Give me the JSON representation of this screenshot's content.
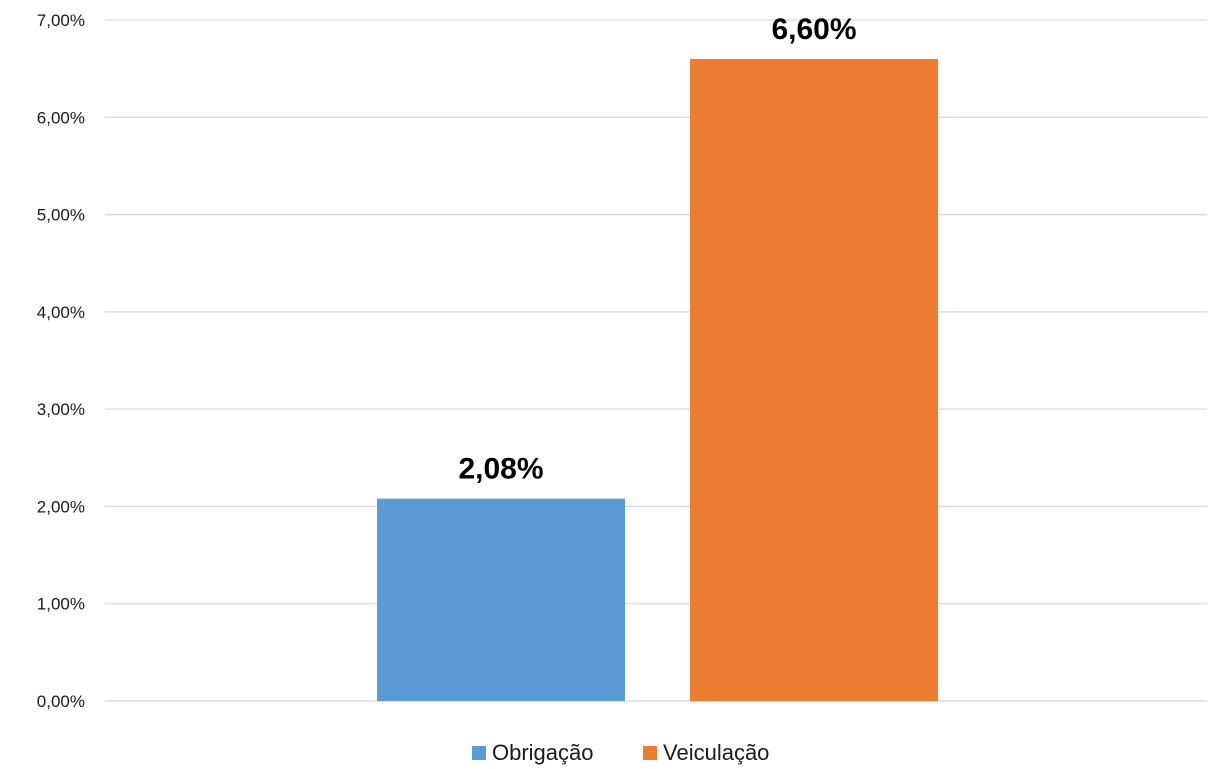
{
  "chart_data": {
    "type": "bar",
    "categories": [
      "Obrigação",
      "Veiculação"
    ],
    "series": [
      {
        "name": "Obrigação",
        "color": "#5B9BD5",
        "values": [
          2.08,
          null
        ]
      },
      {
        "name": "Veiculação",
        "color": "#ED7D31",
        "values": [
          null,
          6.6
        ]
      }
    ],
    "data_labels": [
      "2,08%",
      "6,60%"
    ],
    "ylim": [
      0,
      7
    ],
    "yticks": [
      0,
      1,
      2,
      3,
      4,
      5,
      6,
      7
    ],
    "ytick_labels": [
      "0,00%",
      "1,00%",
      "2,00%",
      "3,00%",
      "4,00%",
      "5,00%",
      "6,00%",
      "7,00%"
    ],
    "title": "",
    "xlabel": "",
    "ylabel": "",
    "grid": true,
    "legend_position": "bottom",
    "legend": [
      {
        "label": "Obrigação",
        "color": "#5B9BD5"
      },
      {
        "label": "Veiculação",
        "color": "#ED7D31"
      }
    ]
  }
}
